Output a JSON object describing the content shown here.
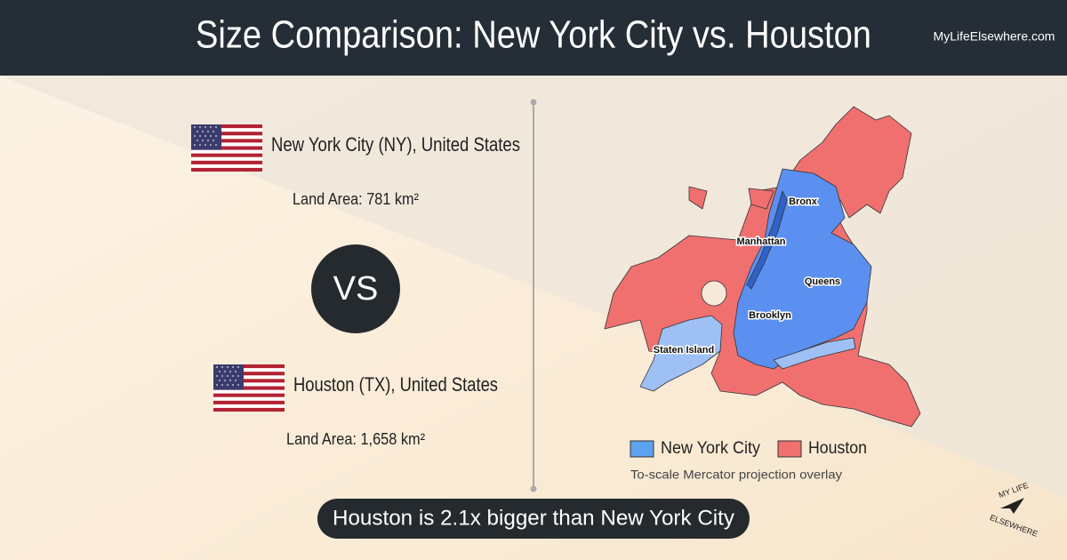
{
  "header": {
    "title": "Size Comparison: New York City vs. Houston",
    "site": "MyLifeElsewhere.com"
  },
  "city_a": {
    "name": "New York City (NY), United States",
    "area": "Land Area: 781 km²"
  },
  "versus": "VS",
  "city_b": {
    "name": "Houston (TX), United States",
    "area": "Land Area: 1,658 km²"
  },
  "map": {
    "labels": [
      "Bronx",
      "Manhattan",
      "Queens",
      "Brooklyn",
      "Staten Island"
    ],
    "legend": [
      "New York City",
      "Houston"
    ],
    "caption": "To-scale Mercator projection overlay"
  },
  "conclusion": "Houston is 2.1x bigger than New York City",
  "logo": {
    "top": "MY LIFE",
    "bottom": "ELSEWHERE"
  }
}
